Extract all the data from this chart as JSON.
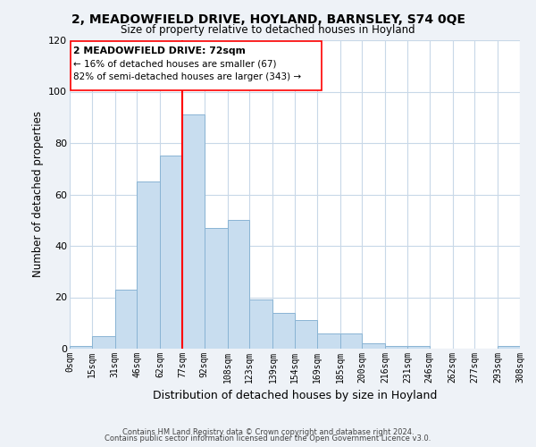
{
  "title": "2, MEADOWFIELD DRIVE, HOYLAND, BARNSLEY, S74 0QE",
  "subtitle": "Size of property relative to detached houses in Hoyland",
  "xlabel": "Distribution of detached houses by size in Hoyland",
  "ylabel": "Number of detached properties",
  "bar_color": "#c8ddef",
  "bar_edge_color": "#8ab4d4",
  "red_line_x": 77,
  "annotation_title": "2 MEADOWFIELD DRIVE: 72sqm",
  "annotation_line1": "← 16% of detached houses are smaller (67)",
  "annotation_line2": "82% of semi-detached houses are larger (343) →",
  "bin_edges": [
    0,
    15,
    31,
    46,
    62,
    77,
    92,
    108,
    123,
    139,
    154,
    169,
    185,
    200,
    216,
    231,
    246,
    262,
    277,
    293,
    308
  ],
  "bar_heights": [
    1,
    5,
    23,
    65,
    75,
    91,
    47,
    50,
    19,
    14,
    11,
    6,
    6,
    2,
    1,
    1,
    0,
    0,
    0,
    1
  ],
  "tick_labels": [
    "0sqm",
    "15sqm",
    "31sqm",
    "46sqm",
    "62sqm",
    "77sqm",
    "92sqm",
    "108sqm",
    "123sqm",
    "139sqm",
    "154sqm",
    "169sqm",
    "185sqm",
    "200sqm",
    "216sqm",
    "231sqm",
    "246sqm",
    "262sqm",
    "277sqm",
    "293sqm",
    "308sqm"
  ],
  "ylim": [
    0,
    120
  ],
  "yticks": [
    0,
    20,
    40,
    60,
    80,
    100,
    120
  ],
  "footer_line1": "Contains HM Land Registry data © Crown copyright and database right 2024.",
  "footer_line2": "Contains public sector information licensed under the Open Government Licence v3.0.",
  "background_color": "#eef2f7",
  "plot_background": "#ffffff",
  "grid_color": "#c8d8e8"
}
